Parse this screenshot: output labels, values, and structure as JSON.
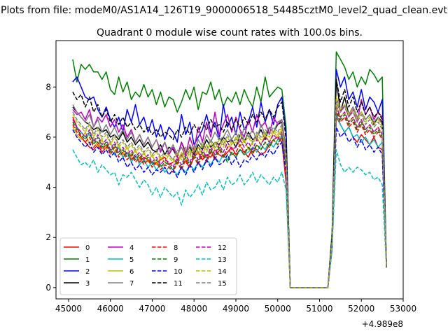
{
  "figure": {
    "suptitle": "Plots from file: modeM0/AS1A14_126T19_9000006518_54485cztM0_level2_quad_clean.evt",
    "offset_label": "+4.989e8"
  },
  "chart_data": {
    "type": "line",
    "title": "Quadrant 0 module wise count rates with 100.0s bins.",
    "xlabel": "",
    "ylabel": "",
    "xlim": [
      44700,
      53000
    ],
    "ylim": [
      -0.45,
      9.85
    ],
    "x_offset": 498900000,
    "x_ticks": [
      45000,
      46000,
      47000,
      48000,
      49000,
      50000,
      51000,
      52000,
      53000
    ],
    "x_tick_labels": [
      "45000",
      "46000",
      "47000",
      "48000",
      "49000",
      "50000",
      "51000",
      "52000",
      "53000"
    ],
    "y_ticks": [
      0,
      2,
      4,
      6,
      8
    ],
    "y_tick_labels": [
      "0",
      "2",
      "4",
      "6",
      "8"
    ],
    "grid": false,
    "legend": {
      "location": "lower-left",
      "columns": 4
    },
    "segments": [
      {
        "x_start": 45100,
        "x_end": 50300,
        "step": 100
      },
      {
        "x_start": 51200,
        "x_end": 52600,
        "step": 100
      }
    ],
    "series": [
      {
        "name": "0",
        "color": "#ff0000",
        "dash": "solid",
        "seg1": [
          6.8,
          6.4,
          6.0,
          5.8,
          5.6,
          5.5,
          5.7,
          5.4,
          5.6,
          5.5,
          5.3,
          5.6,
          5.2,
          5.4,
          5.1,
          5.3,
          5.0,
          5.2,
          5.1,
          5.0,
          4.9,
          5.1,
          5.2,
          4.9,
          5.0,
          5.1,
          5.3,
          5.0,
          4.8,
          5.2,
          5.4,
          5.1,
          5.3,
          5.2,
          5.5,
          5.3,
          5.2,
          5.4,
          5.6,
          5.3,
          5.5,
          5.4,
          5.2,
          5.6,
          5.5,
          5.3,
          5.4,
          5.7,
          5.9,
          6.0,
          5.8,
          4.2,
          0.0
        ],
        "seg2": [
          0.0,
          1.6,
          6.8,
          6.5,
          6.2,
          6.4,
          6.0,
          5.8,
          6.1,
          5.9,
          5.7,
          6.0,
          5.6,
          5.5,
          1.0
        ]
      },
      {
        "name": "1",
        "color": "#008000",
        "dash": "solid",
        "seg1": [
          9.1,
          8.2,
          8.9,
          8.7,
          8.9,
          8.6,
          8.6,
          8.3,
          8.6,
          7.9,
          7.7,
          8.4,
          7.8,
          8.2,
          7.5,
          7.8,
          7.6,
          8.1,
          7.6,
          7.9,
          7.3,
          7.8,
          7.2,
          7.6,
          7.5,
          7.0,
          7.4,
          7.9,
          7.5,
          8.0,
          7.1,
          7.8,
          7.7,
          8.2,
          7.5,
          7.9,
          7.2,
          7.6,
          7.4,
          7.8,
          7.3,
          7.9,
          7.5,
          7.2,
          8.0,
          7.4,
          8.4,
          7.6,
          7.8,
          8.0,
          7.9,
          6.4,
          0.0
        ],
        "seg2": [
          0.0,
          2.2,
          9.4,
          9.1,
          8.8,
          8.3,
          8.6,
          8.0,
          8.4,
          8.1,
          8.7,
          8.5,
          8.2,
          8.4,
          0.9
        ]
      },
      {
        "name": "2",
        "color": "#0000ff",
        "dash": "solid",
        "seg1": [
          8.2,
          8.4,
          8.0,
          7.6,
          7.5,
          7.6,
          7.1,
          6.8,
          7.2,
          6.7,
          6.4,
          6.8,
          6.2,
          7.1,
          6.6,
          7.3,
          6.5,
          6.8,
          6.2,
          6.7,
          6.0,
          6.5,
          5.9,
          6.4,
          6.2,
          5.8,
          6.9,
          6.1,
          6.6,
          5.7,
          6.0,
          6.3,
          6.9,
          6.2,
          6.6,
          5.9,
          7.3,
          6.4,
          6.8,
          6.1,
          7.0,
          6.3,
          6.6,
          7.2,
          6.4,
          7.4,
          6.6,
          7.1,
          6.5,
          7.3,
          7.6,
          6.1,
          0.0
        ],
        "seg2": [
          0.0,
          2.0,
          8.7,
          8.0,
          8.4,
          7.5,
          7.8,
          7.2,
          7.9,
          7.1,
          7.6,
          7.4,
          7.0,
          7.5,
          0.9
        ]
      },
      {
        "name": "3",
        "color": "#000000",
        "dash": "solid",
        "seg1": [
          7.2,
          7.0,
          6.8,
          6.6,
          6.5,
          6.3,
          6.4,
          6.2,
          6.3,
          6.0,
          6.1,
          5.9,
          6.2,
          5.8,
          6.0,
          5.7,
          5.9,
          5.6,
          5.8,
          5.5,
          5.4,
          5.7,
          5.3,
          5.6,
          5.5,
          5.2,
          5.8,
          5.4,
          5.6,
          5.3,
          5.7,
          5.5,
          5.9,
          5.6,
          5.8,
          5.7,
          6.0,
          5.8,
          5.9,
          5.6,
          6.1,
          5.8,
          6.2,
          5.9,
          6.0,
          6.3,
          5.9,
          6.4,
          6.2,
          6.5,
          6.6,
          5.2,
          0.0
        ],
        "seg2": [
          0.0,
          1.8,
          8.3,
          7.0,
          7.6,
          6.9,
          7.2,
          6.8,
          7.0,
          6.7,
          6.9,
          6.5,
          6.8,
          6.6,
          0.8
        ]
      },
      {
        "name": "4",
        "color": "#bf00bf",
        "dash": "solid",
        "seg1": [
          7.1,
          6.9,
          7.0,
          6.7,
          7.1,
          6.4,
          6.8,
          6.6,
          6.9,
          6.4,
          6.7,
          6.2,
          6.5,
          6.0,
          6.3,
          5.8,
          6.1,
          5.7,
          6.0,
          5.6,
          5.9,
          5.4,
          5.8,
          5.3,
          5.6,
          5.2,
          5.8,
          5.3,
          6.0,
          5.5,
          6.4,
          5.8,
          6.6,
          6.0,
          7.0,
          6.1,
          6.5,
          6.9,
          6.2,
          6.8,
          6.3,
          6.0,
          6.7,
          6.2,
          6.9,
          6.4,
          6.6,
          6.1,
          6.8,
          6.5,
          6.7,
          5.5,
          0.0
        ],
        "seg2": [
          0.0,
          1.9,
          7.6,
          7.0,
          7.3,
          6.8,
          7.1,
          6.6,
          7.5,
          6.9,
          7.2,
          6.7,
          7.0,
          6.8,
          0.9
        ]
      },
      {
        "name": "5",
        "color": "#00bfbf",
        "dash": "solid",
        "seg1": [
          6.6,
          6.4,
          6.2,
          6.0,
          6.1,
          5.9,
          5.8,
          5.6,
          5.7,
          5.5,
          5.3,
          5.6,
          5.2,
          5.4,
          5.0,
          5.3,
          4.9,
          5.1,
          4.8,
          5.0,
          4.7,
          4.9,
          4.6,
          4.8,
          4.7,
          4.5,
          4.8,
          4.6,
          4.9,
          4.7,
          5.0,
          4.8,
          5.1,
          4.9,
          5.2,
          5.0,
          5.3,
          5.1,
          5.4,
          5.2,
          5.5,
          5.3,
          5.4,
          5.6,
          5.4,
          5.7,
          5.5,
          5.8,
          5.6,
          5.9,
          6.0,
          4.8,
          0.0
        ],
        "seg2": [
          0.0,
          1.6,
          6.9,
          6.5,
          6.2,
          6.4,
          6.0,
          6.1,
          5.8,
          6.0,
          5.7,
          5.9,
          5.6,
          5.8,
          0.8
        ]
      },
      {
        "name": "6",
        "color": "#bfbf00",
        "dash": "solid",
        "seg1": [
          6.4,
          6.1,
          5.9,
          6.2,
          5.7,
          6.0,
          5.6,
          5.9,
          5.5,
          5.8,
          5.4,
          5.7,
          5.3,
          5.6,
          5.2,
          5.5,
          5.1,
          5.4,
          5.0,
          5.3,
          4.9,
          5.2,
          5.0,
          5.3,
          5.1,
          4.9,
          5.4,
          5.0,
          5.5,
          5.2,
          5.6,
          5.3,
          5.7,
          5.4,
          5.8,
          5.5,
          5.9,
          5.6,
          5.7,
          6.0,
          5.6,
          5.9,
          5.5,
          5.8,
          6.0,
          5.7,
          6.1,
          5.8,
          6.2,
          6.0,
          6.3,
          5.0,
          0.0
        ],
        "seg2": [
          0.0,
          1.7,
          7.3,
          6.8,
          7.0,
          6.6,
          6.8,
          6.4,
          6.7,
          6.3,
          6.5,
          6.2,
          6.4,
          6.1,
          0.8
        ]
      },
      {
        "name": "7",
        "color": "#808080",
        "dash": "solid",
        "seg1": [
          7.3,
          7.0,
          6.8,
          6.6,
          6.9,
          6.4,
          6.7,
          6.2,
          6.5,
          6.1,
          6.4,
          6.0,
          6.3,
          5.9,
          6.2,
          5.8,
          6.1,
          5.7,
          6.0,
          5.6,
          5.9,
          5.5,
          5.8,
          5.4,
          5.7,
          5.3,
          5.6,
          5.2,
          5.7,
          5.4,
          5.9,
          5.6,
          6.1,
          5.8,
          6.2,
          5.9,
          6.0,
          6.3,
          5.9,
          6.2,
          5.8,
          6.4,
          6.0,
          6.3,
          5.9,
          6.5,
          6.1,
          6.4,
          6.2,
          6.6,
          6.7,
          5.4,
          0.0
        ],
        "seg2": [
          0.0,
          1.9,
          7.5,
          7.1,
          7.3,
          6.9,
          7.2,
          6.8,
          7.0,
          6.7,
          6.9,
          6.6,
          6.8,
          6.5,
          0.8
        ]
      },
      {
        "name": "8",
        "color": "#ff0000",
        "dash": "dashed",
        "seg1": [
          6.5,
          6.2,
          6.0,
          5.8,
          6.0,
          5.6,
          5.8,
          5.5,
          5.7,
          5.3,
          5.6,
          5.2,
          5.4,
          5.1,
          5.3,
          5.0,
          5.2,
          4.9,
          5.1,
          4.8,
          5.0,
          4.7,
          4.9,
          4.8,
          4.6,
          5.0,
          4.7,
          5.1,
          4.8,
          5.2,
          4.9,
          5.3,
          5.0,
          5.4,
          5.1,
          5.5,
          5.2,
          5.6,
          5.3,
          5.4,
          5.7,
          5.4,
          5.6,
          5.3,
          5.7,
          5.5,
          5.8,
          5.6,
          5.9,
          5.7,
          6.0,
          4.9,
          0.0
        ],
        "seg2": [
          0.0,
          1.7,
          7.0,
          6.6,
          6.8,
          6.4,
          6.6,
          6.2,
          6.5,
          6.1,
          6.3,
          6.0,
          6.2,
          5.9,
          0.8
        ]
      },
      {
        "name": "9",
        "color": "#008000",
        "dash": "dashed",
        "seg1": [
          6.6,
          6.3,
          6.1,
          5.9,
          6.2,
          5.7,
          6.0,
          5.6,
          5.8,
          5.4,
          5.7,
          5.3,
          5.5,
          5.2,
          5.4,
          5.1,
          5.3,
          5.0,
          5.2,
          4.9,
          5.1,
          4.8,
          5.0,
          4.9,
          4.7,
          5.1,
          4.8,
          5.2,
          4.9,
          5.3,
          5.0,
          5.4,
          5.1,
          5.5,
          5.2,
          5.6,
          5.3,
          5.0,
          5.4,
          5.2,
          5.5,
          5.3,
          5.6,
          5.4,
          5.7,
          5.5,
          5.8,
          5.6,
          5.9,
          5.7,
          6.1,
          4.9,
          0.0
        ],
        "seg2": [
          0.0,
          1.7,
          7.1,
          6.7,
          6.9,
          6.5,
          6.7,
          6.3,
          6.6,
          6.2,
          6.4,
          6.1,
          6.3,
          6.0,
          0.8
        ]
      },
      {
        "name": "10",
        "color": "#0000ff",
        "dash": "dashed",
        "seg1": [
          6.3,
          6.0,
          5.8,
          5.6,
          5.8,
          5.4,
          5.6,
          5.3,
          5.5,
          5.2,
          5.4,
          5.0,
          5.2,
          4.8,
          5.0,
          4.7,
          4.9,
          4.6,
          4.8,
          4.5,
          4.7,
          4.6,
          4.8,
          4.5,
          4.7,
          4.4,
          4.8,
          4.5,
          4.9,
          4.6,
          5.0,
          4.7,
          5.1,
          4.8,
          5.2,
          4.9,
          5.0,
          5.3,
          4.9,
          5.2,
          4.8,
          5.1,
          5.0,
          5.3,
          5.1,
          5.4,
          5.2,
          5.5,
          5.3,
          5.6,
          5.8,
          4.6,
          0.0
        ],
        "seg2": [
          0.0,
          1.6,
          6.4,
          6.0,
          6.2,
          5.8,
          6.0,
          5.6,
          5.9,
          5.5,
          5.7,
          5.4,
          5.6,
          5.3,
          0.8
        ]
      },
      {
        "name": "11",
        "color": "#000000",
        "dash": "dashed",
        "seg1": [
          7.8,
          7.5,
          7.7,
          7.2,
          7.6,
          7.0,
          7.3,
          6.8,
          7.1,
          6.6,
          6.9,
          6.5,
          6.8,
          6.4,
          6.6,
          6.3,
          6.5,
          6.2,
          6.4,
          6.1,
          6.3,
          6.0,
          6.2,
          6.1,
          5.9,
          6.3,
          6.0,
          6.4,
          6.1,
          6.5,
          6.2,
          6.6,
          6.3,
          6.7,
          6.4,
          6.5,
          6.2,
          6.6,
          6.3,
          6.7,
          6.4,
          6.8,
          6.5,
          6.9,
          6.6,
          7.0,
          6.7,
          7.1,
          6.8,
          7.2,
          7.4,
          5.9,
          0.0
        ],
        "seg2": [
          0.0,
          2.1,
          8.3,
          7.4,
          7.9,
          7.2,
          7.6,
          7.0,
          7.4,
          6.9,
          7.2,
          6.8,
          7.0,
          6.7,
          0.8
        ]
      },
      {
        "name": "12",
        "color": "#bf00bf",
        "dash": "dashed",
        "seg1": [
          6.7,
          6.4,
          6.2,
          6.0,
          6.3,
          5.8,
          6.1,
          5.7,
          5.9,
          5.5,
          5.8,
          5.4,
          5.6,
          5.3,
          5.5,
          5.2,
          5.4,
          5.1,
          5.3,
          5.0,
          5.2,
          4.9,
          5.1,
          5.0,
          4.8,
          5.2,
          4.9,
          5.3,
          5.0,
          5.4,
          5.1,
          5.5,
          5.2,
          5.6,
          5.3,
          5.7,
          5.4,
          5.8,
          5.5,
          5.6,
          5.9,
          5.6,
          5.8,
          5.5,
          5.9,
          5.7,
          6.0,
          5.8,
          6.1,
          5.9,
          6.2,
          5.0,
          0.0
        ],
        "seg2": [
          0.0,
          1.7,
          7.2,
          6.8,
          7.0,
          6.6,
          6.8,
          6.4,
          6.7,
          6.3,
          6.5,
          6.2,
          6.4,
          6.1,
          0.8
        ]
      },
      {
        "name": "13",
        "color": "#00bfbf",
        "dash": "dashed",
        "seg1": [
          5.5,
          5.2,
          4.9,
          5.0,
          4.8,
          5.1,
          4.6,
          4.9,
          4.7,
          4.5,
          4.6,
          4.1,
          4.5,
          4.4,
          4.6,
          4.3,
          4.0,
          4.3,
          4.1,
          3.7,
          4.0,
          3.6,
          4.0,
          3.8,
          3.6,
          3.8,
          3.3,
          3.9,
          3.6,
          3.8,
          4.1,
          3.7,
          4.2,
          3.9,
          4.0,
          4.3,
          3.9,
          4.4,
          4.1,
          4.2,
          4.5,
          4.1,
          4.3,
          4.6,
          4.2,
          4.5,
          4.3,
          4.1,
          4.4,
          4.2,
          4.6,
          3.9,
          0.0
        ],
        "seg2": [
          0.0,
          1.5,
          5.5,
          4.9,
          4.6,
          4.8,
          4.6,
          4.8,
          4.7,
          4.5,
          4.6,
          4.3,
          4.4,
          4.1,
          0.8
        ]
      },
      {
        "name": "14",
        "color": "#bfbf00",
        "dash": "dashed",
        "seg1": [
          6.9,
          6.6,
          6.4,
          6.2,
          6.5,
          6.0,
          6.3,
          5.9,
          6.1,
          5.7,
          6.0,
          5.6,
          5.8,
          5.5,
          5.7,
          5.4,
          5.6,
          5.3,
          5.5,
          5.2,
          5.4,
          5.1,
          5.3,
          5.2,
          5.0,
          5.4,
          5.1,
          5.5,
          5.2,
          5.6,
          5.3,
          5.7,
          5.4,
          5.8,
          5.5,
          5.9,
          5.6,
          6.0,
          5.7,
          5.8,
          6.1,
          5.8,
          6.0,
          5.7,
          6.1,
          5.9,
          6.2,
          6.0,
          6.3,
          6.1,
          6.4,
          5.1,
          0.0
        ],
        "seg2": [
          0.0,
          1.8,
          7.6,
          7.1,
          7.3,
          6.9,
          7.1,
          6.7,
          7.0,
          6.6,
          6.8,
          6.5,
          6.7,
          6.4,
          0.8
        ]
      },
      {
        "name": "15",
        "color": "#808080",
        "dash": "dashed",
        "seg1": [
          7.0,
          6.7,
          6.5,
          6.3,
          6.6,
          6.1,
          6.4,
          6.0,
          6.2,
          5.8,
          6.1,
          5.7,
          5.9,
          5.6,
          5.8,
          5.5,
          5.7,
          5.4,
          5.6,
          5.3,
          5.5,
          5.2,
          5.4,
          5.3,
          5.1,
          5.5,
          5.2,
          5.6,
          5.3,
          5.7,
          5.4,
          5.8,
          5.5,
          5.9,
          5.6,
          6.0,
          5.7,
          6.1,
          5.8,
          5.9,
          6.2,
          5.9,
          6.1,
          5.8,
          6.2,
          6.0,
          6.3,
          6.1,
          6.4,
          6.2,
          6.5,
          5.2,
          0.0
        ],
        "seg2": [
          0.0,
          1.8,
          7.4,
          7.0,
          7.2,
          6.8,
          7.0,
          6.6,
          6.9,
          6.5,
          6.7,
          6.4,
          6.6,
          6.3,
          0.8
        ]
      }
    ]
  }
}
